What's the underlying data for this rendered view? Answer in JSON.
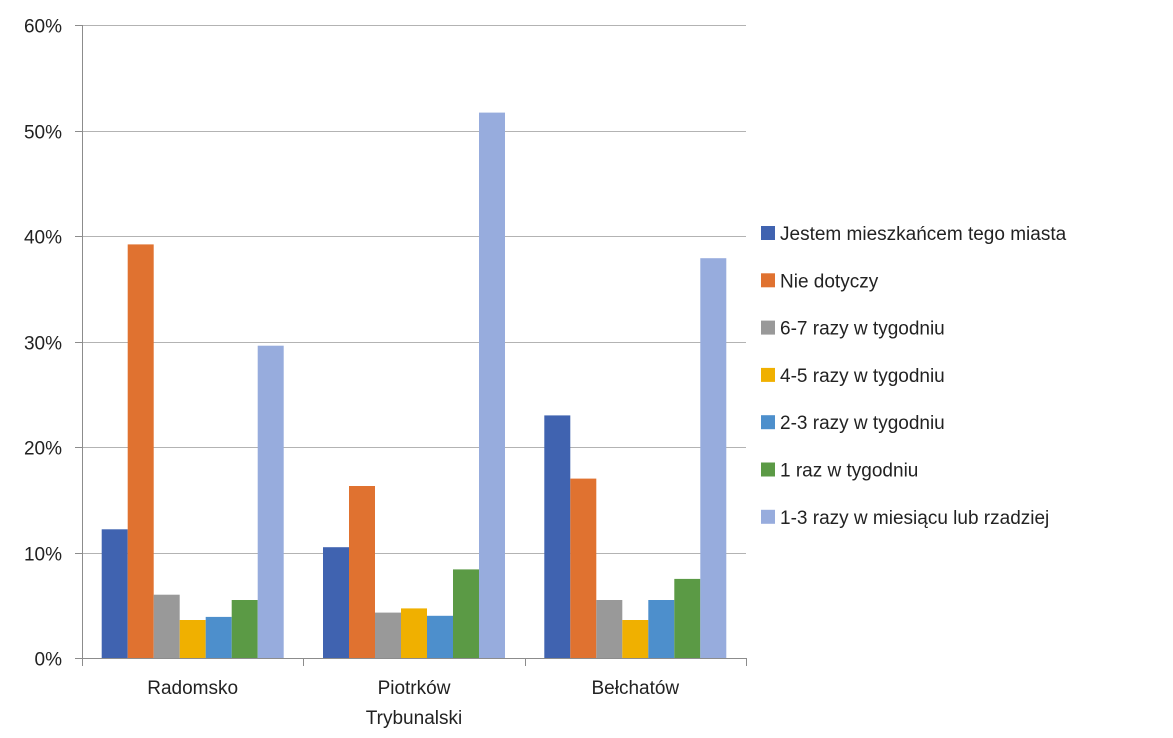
{
  "chart_data": {
    "type": "bar",
    "title": "",
    "xlabel": "",
    "ylabel": "",
    "categories": [
      [
        "Radomsko"
      ],
      [
        "Piotrków",
        "Trybunalski"
      ],
      [
        "Bełchatów"
      ]
    ],
    "ylim": [
      0,
      0.6
    ],
    "yticks": [
      0,
      0.1,
      0.2,
      0.3,
      0.4,
      0.5,
      0.6
    ],
    "ytick_labels": [
      "0%",
      "10%",
      "20%",
      "30%",
      "40%",
      "50%",
      "60%"
    ],
    "grid": true,
    "legend_position": "right",
    "series": [
      {
        "name": "Jestem mieszkańcem tego miasta",
        "color": "#4063b0",
        "values": [
          0.122,
          0.105,
          0.23
        ]
      },
      {
        "name": "Nie dotyczy",
        "color": "#e07230",
        "values": [
          0.392,
          0.163,
          0.17
        ]
      },
      {
        "name": "6-7 razy w tygodniu",
        "color": "#999999",
        "values": [
          0.06,
          0.043,
          0.055
        ]
      },
      {
        "name": "4-5 razy w tygodniu",
        "color": "#f0b000",
        "values": [
          0.036,
          0.047,
          0.036
        ]
      },
      {
        "name": "2-3 razy w tygodniu",
        "color": "#4d8fcc",
        "values": [
          0.039,
          0.04,
          0.055
        ]
      },
      {
        "name": "1 raz w tygodniu",
        "color": "#5b9a45",
        "values": [
          0.055,
          0.084,
          0.075
        ]
      },
      {
        "name": "1-3 razy w miesiącu lub rzadziej",
        "color": "#97acdd",
        "values": [
          0.296,
          0.517,
          0.379
        ]
      }
    ]
  }
}
